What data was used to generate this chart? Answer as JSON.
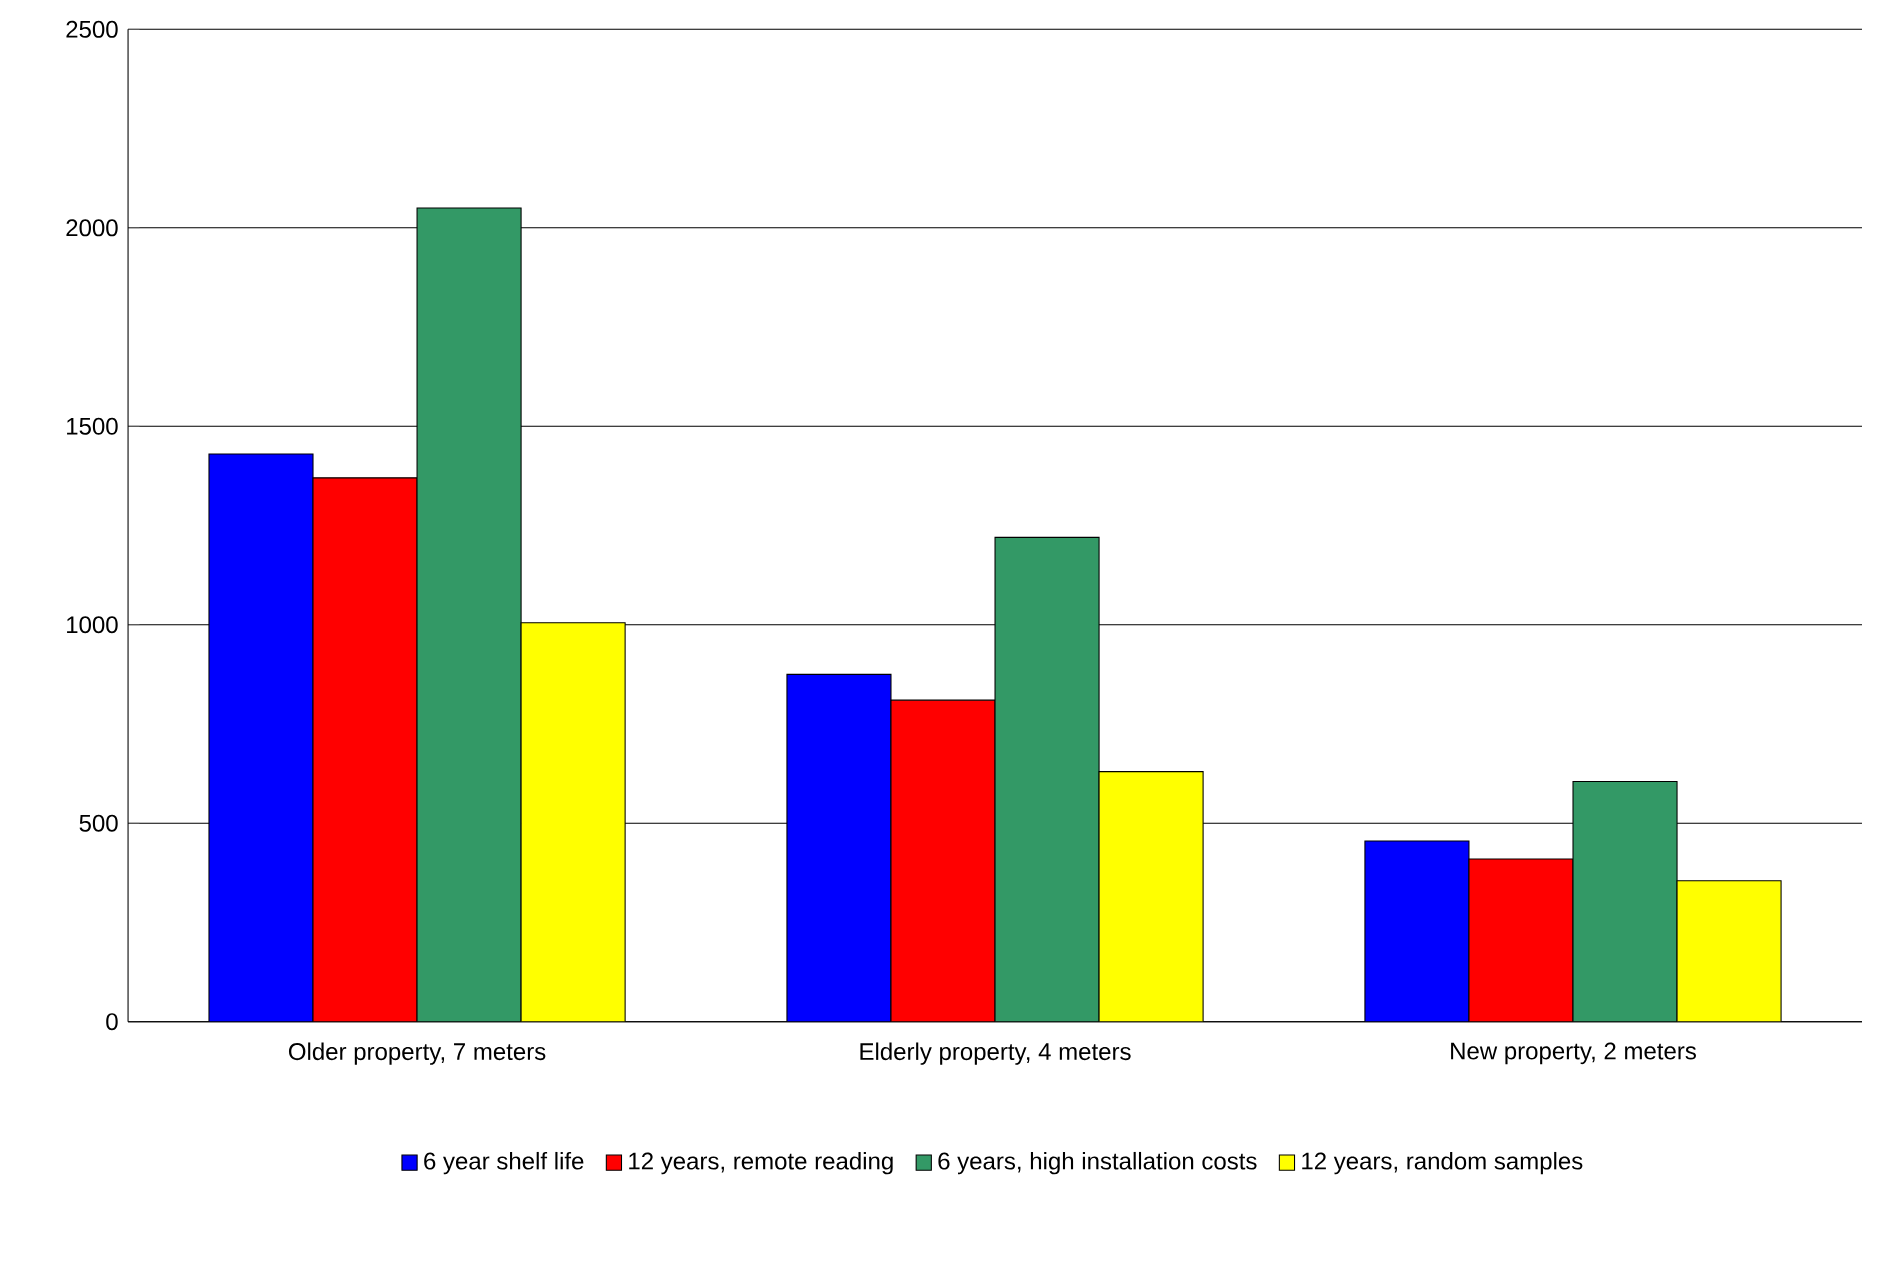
{
  "chart_data": {
    "type": "bar",
    "categories": [
      "Older property, 7 meters",
      "Elderly property, 4 meters",
      "New property, 2 meters"
    ],
    "series": [
      {
        "name": "6 year shelf life",
        "color": "#0000ff",
        "values": [
          1430,
          875,
          455
        ]
      },
      {
        "name": "12 years, remote reading",
        "color": "#ff0000",
        "values": [
          1370,
          810,
          410
        ]
      },
      {
        "name": "6 years, high installation costs",
        "color": "#339966",
        "values": [
          2050,
          1220,
          605
        ]
      },
      {
        "name": "12 years, random samples",
        "color": "#ffff00",
        "values": [
          1005,
          630,
          355
        ]
      }
    ],
    "ylim": [
      0,
      2500
    ],
    "yticks": [
      0,
      500,
      1000,
      1500,
      2000,
      2500
    ],
    "grid": "y",
    "legend": "bottom"
  }
}
